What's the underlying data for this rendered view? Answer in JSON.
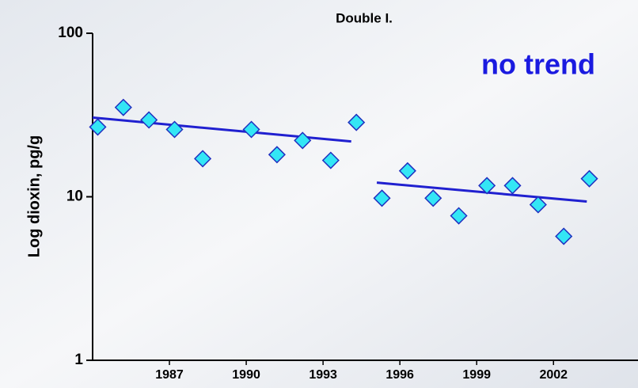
{
  "chart_data": {
    "type": "scatter",
    "title": "Double I.",
    "ylabel": "Log dioxin, pg/g",
    "annotation": {
      "text": "no trend",
      "color": "#1a1ae0"
    },
    "log_y": true,
    "xlim": [
      1984,
      2005.3
    ],
    "ylim": [
      1,
      100
    ],
    "xticks": [
      1987,
      1990,
      1993,
      1996,
      1999,
      2002
    ],
    "yticks": [
      1,
      10,
      100
    ],
    "series": [
      {
        "color": "#33e6f5",
        "edge": "#2030c0",
        "marker": "diamond",
        "x": [
          1984.2,
          1985.2,
          1986.2,
          1987.2,
          1988.3,
          1990.2,
          1991.2,
          1992.2,
          1993.3,
          1994.3,
          1995.3,
          1996.3,
          1997.3,
          1998.3,
          1999.4,
          2000.4,
          2001.4,
          2002.4,
          2003.4
        ],
        "values": [
          26.7,
          35.2,
          29.5,
          25.8,
          17.1,
          25.8,
          18.1,
          22.1,
          16.7,
          28.5,
          9.8,
          14.4,
          9.8,
          7.65,
          11.7,
          11.7,
          8.95,
          5.73,
          12.9
        ]
      }
    ],
    "trend_lines": [
      {
        "color": "#2020d0",
        "x": [
          1984.0,
          1994.1
        ],
        "values": [
          30.5,
          21.8
        ]
      },
      {
        "color": "#2020d0",
        "x": [
          1995.1,
          2003.3
        ],
        "values": [
          12.2,
          9.35
        ]
      }
    ]
  }
}
